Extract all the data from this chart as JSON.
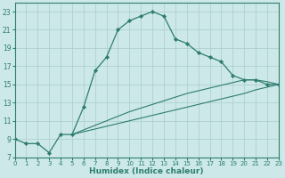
{
  "xlabel": "Humidex (Indice chaleur)",
  "bg_color": "#cce8e8",
  "grid_color": "#aacccc",
  "line_color": "#2d7d6e",
  "xlim": [
    0,
    23
  ],
  "ylim": [
    7,
    24
  ],
  "x_ticks": [
    0,
    1,
    2,
    3,
    4,
    5,
    6,
    7,
    8,
    9,
    10,
    11,
    12,
    13,
    14,
    15,
    16,
    17,
    18,
    19,
    20,
    21,
    22,
    23
  ],
  "y_ticks": [
    7,
    9,
    11,
    13,
    15,
    17,
    19,
    21,
    23
  ],
  "curve1_x": [
    0,
    1,
    2,
    3,
    4,
    5,
    6,
    7,
    8,
    9,
    10,
    11,
    12,
    13,
    14,
    15,
    16,
    17,
    18,
    19,
    20,
    21,
    22,
    23
  ],
  "curve1_y": [
    9,
    8.5,
    8.5,
    7.5,
    9.5,
    9.5,
    12.5,
    16.5,
    18,
    21,
    22,
    22.5,
    23,
    22.5,
    20,
    19.5,
    18.5,
    18,
    17.5,
    16,
    15.5,
    15.5,
    15,
    15
  ],
  "curve2_x": [
    5,
    6,
    7,
    8,
    9,
    10,
    11,
    12,
    13,
    14,
    15,
    16,
    17,
    18,
    19,
    20,
    21,
    22,
    23
  ],
  "curve2_y": [
    9.5,
    9.8,
    10.1,
    10.4,
    10.7,
    11.0,
    11.3,
    11.6,
    11.9,
    12.2,
    12.5,
    12.8,
    13.1,
    13.4,
    13.7,
    14.0,
    14.4,
    14.7,
    15.0
  ],
  "curve3_x": [
    5,
    6,
    7,
    8,
    9,
    10,
    11,
    12,
    13,
    14,
    15,
    16,
    17,
    18,
    19,
    20,
    21,
    22,
    23
  ],
  "curve3_y": [
    9.5,
    10.0,
    10.5,
    11.0,
    11.5,
    12.0,
    12.4,
    12.8,
    13.2,
    13.6,
    14.0,
    14.3,
    14.6,
    14.9,
    15.2,
    15.5,
    15.5,
    15.3,
    15.0
  ]
}
